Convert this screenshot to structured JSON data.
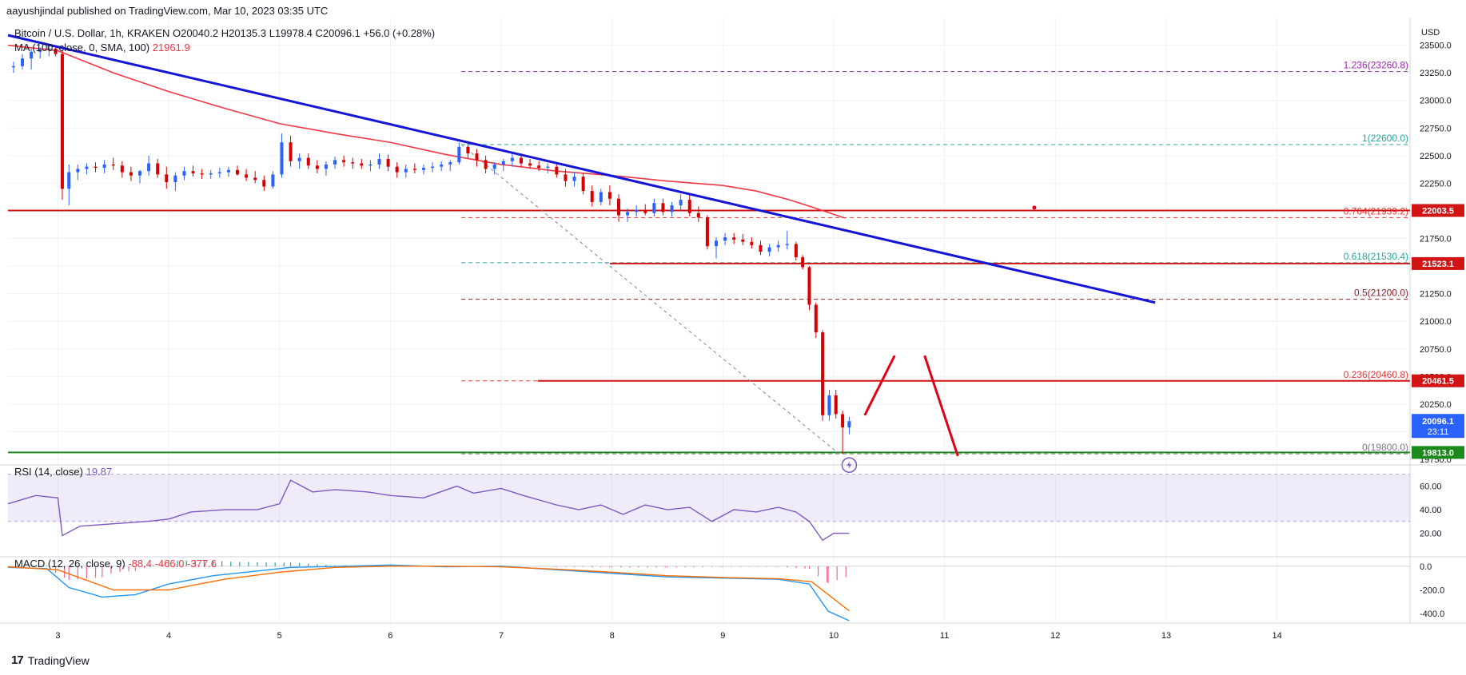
{
  "header": {
    "publish_line": "aayushjindal published on TradingView.com, Mar 10, 2023 03:35 UTC",
    "symbol_line": "Bitcoin / U.S. Dollar, 1h, KRAKEN",
    "ohlc": "O20040.2 H20135.3 L19978.4 C20096.1 +56.0 (+0.28%)",
    "ma_label": "MA (100, close, 0, SMA, 100)",
    "ma_value": "21961.9",
    "rsi_label": "RSI (14, close)",
    "rsi_value": "19.87",
    "macd_label": "MACD (12, 26, close, 9)",
    "macd_values": "-88.4  -466.0  -377.6"
  },
  "footer": {
    "brand": "TradingView",
    "logo_glyph": "17"
  },
  "colors": {
    "candle_up": "#2962ff",
    "candle_down": "#d50000",
    "ma": "#f23645",
    "trendline": "#1515d6",
    "support": "#d11515",
    "green": "#1b8a1b",
    "fib_purple": "#9c27b0",
    "fib_teal": "#26a69a",
    "rsi": "#7e57c2"
  },
  "chart_data": {
    "type": "candlestick",
    "currency": "USD",
    "y_ticks": [
      "23500.0",
      "23250.0",
      "23000.0",
      "22750.0",
      "22500.0",
      "22250.0",
      "22000.0",
      "21750.0",
      "21500.0",
      "21250.0",
      "21000.0",
      "20750.0",
      "20500.0",
      "20250.0",
      "20000.0",
      "19750.0"
    ],
    "ylim": [
      19700,
      23750
    ],
    "x_ticks": [
      "3",
      "4",
      "5",
      "6",
      "7",
      "8",
      "9",
      "10",
      "11",
      "12",
      "13",
      "14"
    ],
    "xlim": [
      2.55,
      15.2
    ],
    "price_tags": [
      {
        "value": 22003.5,
        "text": "22003.5",
        "color": "#d11515"
      },
      {
        "value": 21523.1,
        "text": "21523.1",
        "color": "#d11515"
      },
      {
        "value": 20461.5,
        "text": "20461.5",
        "color": "#d11515"
      },
      {
        "value": 20096.1,
        "text": "20096.1",
        "sub": "23:11",
        "color": "#2962ff"
      },
      {
        "value": 19813.0,
        "text": "19813.0",
        "color": "#1b8a1b"
      }
    ],
    "fib_levels": [
      {
        "ratio": "1.236",
        "value": 23260.8,
        "label": "1.236(23260.8)",
        "color": "#9c27b0"
      },
      {
        "ratio": "1",
        "value": 22600.0,
        "label": "1(22600.0)",
        "color": "#26a69a"
      },
      {
        "ratio": "0.764",
        "value": 21939.2,
        "label": "0.764(21939.2)",
        "color": "#e53935"
      },
      {
        "ratio": "0.618",
        "value": 21530.4,
        "label": "0.618(21530.4)",
        "color": "#26a69a"
      },
      {
        "ratio": "0.5",
        "value": 21200.0,
        "label": "0.5(21200.0)",
        "color": "#8a1c1c"
      },
      {
        "ratio": "0.236",
        "value": 20460.8,
        "label": "0.236(20460.8)",
        "color": "#e53935"
      },
      {
        "ratio": "0",
        "value": 19800.0,
        "label": "0(19800.0)",
        "color": "#787b86"
      }
    ],
    "fib_range": {
      "x_start": 6.64,
      "x_end": 15.2
    },
    "horizontal_lines": [
      {
        "value": 22003.5,
        "x_start": 2.55,
        "x_end": 15.2,
        "color": "#d11515"
      },
      {
        "value": 21523.1,
        "x_start": 7.98,
        "x_end": 15.2,
        "color": "#d11515"
      },
      {
        "value": 20461.5,
        "x_start": 7.33,
        "x_end": 15.2,
        "color": "#d11515"
      },
      {
        "value": 19813.0,
        "x_start": 2.55,
        "x_end": 15.2,
        "color": "#1b8a1b"
      }
    ],
    "trendline": {
      "x1": 2.55,
      "y1": 23590,
      "x2": 12.9,
      "y2": 21170
    },
    "diagonal": {
      "x1": 6.64,
      "y1": 22600,
      "x2": 10.05,
      "y2": 19800
    },
    "forecast_path": [
      {
        "x": 10.28,
        "y": 20150
      },
      {
        "x": 10.55,
        "y": 20690
      },
      {
        "x": 10.82,
        "y": 20690
      },
      {
        "x": 11.12,
        "y": 19780
      }
    ],
    "marker_dot": {
      "x": 11.81,
      "y": 22030
    },
    "ma_line": [
      [
        2.55,
        23500
      ],
      [
        3.0,
        23450
      ],
      [
        3.5,
        23250
      ],
      [
        4.0,
        23080
      ],
      [
        4.5,
        22930
      ],
      [
        5.0,
        22790
      ],
      [
        5.5,
        22700
      ],
      [
        6.0,
        22620
      ],
      [
        6.5,
        22510
      ],
      [
        7.0,
        22420
      ],
      [
        7.5,
        22360
      ],
      [
        8.0,
        22320
      ],
      [
        8.5,
        22270
      ],
      [
        9.0,
        22230
      ],
      [
        9.3,
        22180
      ],
      [
        9.6,
        22100
      ],
      [
        9.85,
        22020
      ],
      [
        10.1,
        21935
      ]
    ],
    "candles": [
      [
        2.6,
        23300,
        23350,
        23250,
        23310
      ],
      [
        2.68,
        23310,
        23420,
        23280,
        23380
      ],
      [
        2.76,
        23380,
        23470,
        23280,
        23440
      ],
      [
        2.84,
        23440,
        23480,
        23380,
        23460
      ],
      [
        2.92,
        23460,
        23500,
        23400,
        23470
      ],
      [
        2.98,
        23470,
        23490,
        23400,
        23420
      ],
      [
        3.04,
        23420,
        23450,
        22100,
        22200
      ],
      [
        3.1,
        22200,
        22420,
        22050,
        22350
      ],
      [
        3.18,
        22350,
        22420,
        22280,
        22380
      ],
      [
        3.26,
        22380,
        22430,
        22330,
        22400
      ],
      [
        3.34,
        22400,
        22440,
        22350,
        22390
      ],
      [
        3.42,
        22390,
        22460,
        22340,
        22420
      ],
      [
        3.5,
        22420,
        22480,
        22370,
        22410
      ],
      [
        3.58,
        22410,
        22450,
        22300,
        22350
      ],
      [
        3.66,
        22350,
        22400,
        22270,
        22320
      ],
      [
        3.74,
        22320,
        22370,
        22250,
        22360
      ],
      [
        3.82,
        22360,
        22500,
        22320,
        22430
      ],
      [
        3.9,
        22430,
        22470,
        22300,
        22330
      ],
      [
        3.98,
        22330,
        22400,
        22200,
        22260
      ],
      [
        4.06,
        22260,
        22350,
        22180,
        22320
      ],
      [
        4.14,
        22320,
        22400,
        22280,
        22360
      ],
      [
        4.22,
        22360,
        22410,
        22310,
        22340
      ],
      [
        4.3,
        22340,
        22380,
        22290,
        22330
      ],
      [
        4.38,
        22330,
        22370,
        22290,
        22340
      ],
      [
        4.46,
        22340,
        22390,
        22300,
        22350
      ],
      [
        4.54,
        22350,
        22400,
        22310,
        22370
      ],
      [
        4.62,
        22370,
        22410,
        22320,
        22330
      ],
      [
        4.7,
        22330,
        22380,
        22270,
        22300
      ],
      [
        4.78,
        22300,
        22360,
        22250,
        22280
      ],
      [
        4.86,
        22280,
        22320,
        22180,
        22220
      ],
      [
        4.94,
        22220,
        22360,
        22200,
        22330
      ],
      [
        5.02,
        22330,
        22700,
        22300,
        22620
      ],
      [
        5.1,
        22620,
        22680,
        22400,
        22450
      ],
      [
        5.18,
        22450,
        22520,
        22380,
        22480
      ],
      [
        5.26,
        22480,
        22520,
        22380,
        22410
      ],
      [
        5.34,
        22410,
        22460,
        22340,
        22380
      ],
      [
        5.42,
        22380,
        22450,
        22320,
        22420
      ],
      [
        5.5,
        22420,
        22490,
        22380,
        22460
      ],
      [
        5.58,
        22460,
        22500,
        22400,
        22440
      ],
      [
        5.66,
        22440,
        22480,
        22380,
        22430
      ],
      [
        5.74,
        22430,
        22470,
        22380,
        22410
      ],
      [
        5.82,
        22410,
        22460,
        22360,
        22420
      ],
      [
        5.9,
        22420,
        22520,
        22380,
        22470
      ],
      [
        5.98,
        22470,
        22510,
        22360,
        22400
      ],
      [
        6.06,
        22400,
        22440,
        22300,
        22350
      ],
      [
        6.14,
        22350,
        22420,
        22300,
        22380
      ],
      [
        6.22,
        22380,
        22430,
        22340,
        22370
      ],
      [
        6.3,
        22370,
        22420,
        22330,
        22390
      ],
      [
        6.38,
        22390,
        22440,
        22350,
        22400
      ],
      [
        6.46,
        22400,
        22450,
        22360,
        22420
      ],
      [
        6.54,
        22420,
        22460,
        22360,
        22440
      ],
      [
        6.62,
        22440,
        22620,
        22420,
        22580
      ],
      [
        6.7,
        22580,
        22620,
        22480,
        22520
      ],
      [
        6.78,
        22520,
        22560,
        22400,
        22460
      ],
      [
        6.86,
        22460,
        22500,
        22340,
        22380
      ],
      [
        6.94,
        22380,
        22440,
        22330,
        22420
      ],
      [
        7.02,
        22420,
        22470,
        22360,
        22450
      ],
      [
        7.1,
        22450,
        22520,
        22400,
        22480
      ],
      [
        7.18,
        22480,
        22520,
        22400,
        22430
      ],
      [
        7.26,
        22430,
        22470,
        22380,
        22410
      ],
      [
        7.34,
        22410,
        22450,
        22360,
        22390
      ],
      [
        7.42,
        22390,
        22430,
        22340,
        22400
      ],
      [
        7.5,
        22400,
        22430,
        22300,
        22330
      ],
      [
        7.58,
        22330,
        22380,
        22220,
        22270
      ],
      [
        7.66,
        22270,
        22350,
        22220,
        22310
      ],
      [
        7.74,
        22310,
        22340,
        22150,
        22180
      ],
      [
        7.82,
        22180,
        22230,
        22040,
        22080
      ],
      [
        7.9,
        22080,
        22200,
        22050,
        22170
      ],
      [
        7.98,
        22170,
        22230,
        22050,
        22110
      ],
      [
        8.06,
        22110,
        22150,
        21900,
        21960
      ],
      [
        8.14,
        21960,
        22020,
        21900,
        21990
      ],
      [
        8.22,
        21990,
        22050,
        21950,
        22010
      ],
      [
        8.3,
        22010,
        22060,
        21960,
        21980
      ],
      [
        8.38,
        21980,
        22110,
        21950,
        22070
      ],
      [
        8.46,
        22070,
        22110,
        21960,
        21990
      ],
      [
        8.54,
        21990,
        22080,
        21950,
        22050
      ],
      [
        8.62,
        22050,
        22150,
        22000,
        22100
      ],
      [
        8.7,
        22100,
        22150,
        21950,
        21980
      ],
      [
        8.78,
        21980,
        22040,
        21900,
        21940
      ],
      [
        8.86,
        21940,
        21960,
        21650,
        21680
      ],
      [
        8.94,
        21680,
        21760,
        21570,
        21730
      ],
      [
        9.02,
        21730,
        21800,
        21690,
        21760
      ],
      [
        9.1,
        21760,
        21800,
        21700,
        21740
      ],
      [
        9.18,
        21740,
        21790,
        21690,
        21720
      ],
      [
        9.26,
        21720,
        21760,
        21660,
        21690
      ],
      [
        9.34,
        21690,
        21730,
        21600,
        21630
      ],
      [
        9.42,
        21630,
        21700,
        21590,
        21670
      ],
      [
        9.5,
        21670,
        21730,
        21630,
        21690
      ],
      [
        9.58,
        21690,
        21820,
        21650,
        21700
      ],
      [
        9.66,
        21700,
        21720,
        21550,
        21580
      ],
      [
        9.72,
        21580,
        21600,
        21470,
        21490
      ],
      [
        9.78,
        21490,
        21500,
        21100,
        21150
      ],
      [
        9.84,
        21150,
        21170,
        20850,
        20900
      ],
      [
        9.9,
        20900,
        20920,
        20100,
        20150
      ],
      [
        9.96,
        20150,
        20380,
        20100,
        20330
      ],
      [
        10.02,
        20330,
        20380,
        20120,
        20160
      ],
      [
        10.08,
        20160,
        20190,
        19800,
        20040
      ],
      [
        10.14,
        20040,
        20135,
        19978,
        20096
      ]
    ]
  },
  "rsi_data": {
    "ticks": [
      "60.00",
      "40.00",
      "20.00"
    ],
    "ylim": [
      0,
      78
    ],
    "band": [
      30,
      70
    ],
    "values": [
      [
        2.55,
        45
      ],
      [
        2.8,
        52
      ],
      [
        3.0,
        50
      ],
      [
        3.04,
        18
      ],
      [
        3.2,
        26
      ],
      [
        3.5,
        28
      ],
      [
        3.8,
        30
      ],
      [
        4.0,
        32
      ],
      [
        4.2,
        38
      ],
      [
        4.5,
        40
      ],
      [
        4.8,
        40
      ],
      [
        5.0,
        45
      ],
      [
        5.1,
        65
      ],
      [
        5.3,
        55
      ],
      [
        5.5,
        57
      ],
      [
        5.8,
        55
      ],
      [
        6.0,
        52
      ],
      [
        6.3,
        50
      ],
      [
        6.6,
        60
      ],
      [
        6.75,
        54
      ],
      [
        7.0,
        58
      ],
      [
        7.2,
        52
      ],
      [
        7.5,
        44
      ],
      [
        7.7,
        40
      ],
      [
        7.9,
        44
      ],
      [
        8.1,
        36
      ],
      [
        8.3,
        44
      ],
      [
        8.5,
        40
      ],
      [
        8.7,
        42
      ],
      [
        8.9,
        30
      ],
      [
        9.1,
        40
      ],
      [
        9.3,
        38
      ],
      [
        9.5,
        42
      ],
      [
        9.66,
        38
      ],
      [
        9.78,
        30
      ],
      [
        9.9,
        14
      ],
      [
        10.0,
        20
      ],
      [
        10.14,
        20
      ]
    ]
  },
  "macd_data": {
    "ticks": [
      "0.0",
      "-200.0",
      "-400.0"
    ],
    "ylim": [
      -480,
      80
    ],
    "macd": [
      [
        2.55,
        -10
      ],
      [
        2.9,
        -20
      ],
      [
        3.1,
        -180
      ],
      [
        3.4,
        -260
      ],
      [
        3.7,
        -240
      ],
      [
        4.0,
        -150
      ],
      [
        4.4,
        -80
      ],
      [
        4.8,
        -40
      ],
      [
        5.1,
        -10
      ],
      [
        5.6,
        0
      ],
      [
        6.0,
        10
      ],
      [
        6.5,
        -5
      ],
      [
        7.0,
        0
      ],
      [
        7.5,
        -30
      ],
      [
        8.0,
        -60
      ],
      [
        8.5,
        -90
      ],
      [
        9.0,
        -100
      ],
      [
        9.5,
        -110
      ],
      [
        9.78,
        -150
      ],
      [
        9.95,
        -380
      ],
      [
        10.14,
        -460
      ]
    ],
    "signal": [
      [
        2.55,
        -5
      ],
      [
        3.0,
        -30
      ],
      [
        3.5,
        -200
      ],
      [
        4.0,
        -200
      ],
      [
        4.5,
        -110
      ],
      [
        5.0,
        -50
      ],
      [
        5.5,
        -10
      ],
      [
        6.0,
        0
      ],
      [
        6.5,
        0
      ],
      [
        7.0,
        -5
      ],
      [
        7.5,
        -25
      ],
      [
        8.0,
        -50
      ],
      [
        8.5,
        -80
      ],
      [
        9.0,
        -95
      ],
      [
        9.5,
        -105
      ],
      [
        9.8,
        -130
      ],
      [
        10.14,
        -377
      ]
    ]
  }
}
